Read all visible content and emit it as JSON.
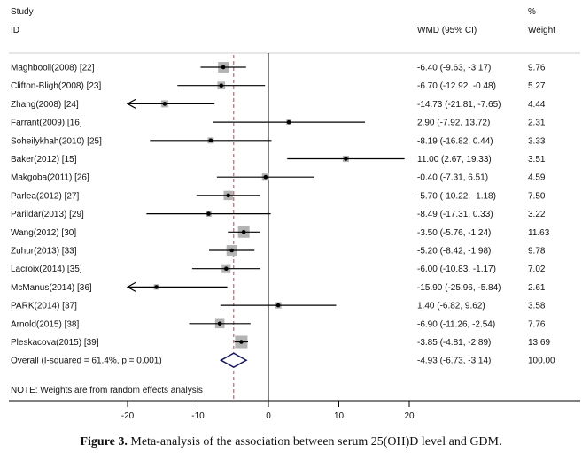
{
  "chart_data": {
    "type": "forest",
    "headers": {
      "study": "Study",
      "id": "ID",
      "effect": "WMD (95% CI)",
      "weight_top": "%",
      "weight": "Weight"
    },
    "xlim": [
      -20,
      20
    ],
    "xticks": [
      -20,
      -10,
      0,
      10,
      20
    ],
    "studies": [
      {
        "label": "Maghbooli(2008) [22]",
        "est": -6.4,
        "lo": -9.63,
        "hi": -3.17,
        "ci_text": "-6.40 (-9.63, -3.17)",
        "weight": "9.76"
      },
      {
        "label": "Clifton-Bligh(2008) [23]",
        "est": -6.7,
        "lo": -12.92,
        "hi": -0.48,
        "ci_text": "-6.70 (-12.92, -0.48)",
        "weight": "5.27"
      },
      {
        "label": "Zhang(2008) [24]",
        "est": -14.73,
        "lo": -21.81,
        "hi": -7.65,
        "ci_text": "-14.73 (-21.81, -7.65)",
        "weight": "4.44"
      },
      {
        "label": "Farrant(2009) [16]",
        "est": 2.9,
        "lo": -7.92,
        "hi": 13.72,
        "ci_text": "2.90 (-7.92, 13.72)",
        "weight": "2.31"
      },
      {
        "label": "Soheilykhah(2010) [25]",
        "est": -8.19,
        "lo": -16.82,
        "hi": 0.44,
        "ci_text": "-8.19 (-16.82, 0.44)",
        "weight": "3.33"
      },
      {
        "label": "Baker(2012) [15]",
        "est": 11.0,
        "lo": 2.67,
        "hi": 19.33,
        "ci_text": "11.00 (2.67, 19.33)",
        "weight": "3.51"
      },
      {
        "label": "Makgoba(2011) [26]",
        "est": -0.4,
        "lo": -7.31,
        "hi": 6.51,
        "ci_text": "-0.40 (-7.31, 6.51)",
        "weight": "4.59"
      },
      {
        "label": "Parlea(2012) [27]",
        "est": -5.7,
        "lo": -10.22,
        "hi": -1.18,
        "ci_text": "-5.70 (-10.22, -1.18)",
        "weight": "7.50"
      },
      {
        "label": "Parildar(2013) [29]",
        "est": -8.49,
        "lo": -17.31,
        "hi": 0.33,
        "ci_text": "-8.49 (-17.31, 0.33)",
        "weight": "3.22"
      },
      {
        "label": "Wang(2012) [30]",
        "est": -3.5,
        "lo": -5.76,
        "hi": -1.24,
        "ci_text": "-3.50 (-5.76, -1.24)",
        "weight": "11.63"
      },
      {
        "label": "Zuhur(2013) [33]",
        "est": -5.2,
        "lo": -8.42,
        "hi": -1.98,
        "ci_text": "-5.20 (-8.42, -1.98)",
        "weight": "9.78"
      },
      {
        "label": "Lacroix(2014) [35]",
        "est": -6.0,
        "lo": -10.83,
        "hi": -1.17,
        "ci_text": "-6.00 (-10.83, -1.17)",
        "weight": "7.02"
      },
      {
        "label": "McManus(2014) [36]",
        "est": -15.9,
        "lo": -25.96,
        "hi": -5.84,
        "ci_text": "-15.90 (-25.96, -5.84)",
        "weight": "2.61"
      },
      {
        "label": "PARK(2014) [37]",
        "est": 1.4,
        "lo": -6.82,
        "hi": 9.62,
        "ci_text": "1.40 (-6.82, 9.62)",
        "weight": "3.58"
      },
      {
        "label": "Arnold(2015) [38]",
        "est": -6.9,
        "lo": -11.26,
        "hi": -2.54,
        "ci_text": "-6.90 (-11.26, -2.54)",
        "weight": "7.76"
      },
      {
        "label": "Pleskacova(2015) [39]",
        "est": -3.85,
        "lo": -4.81,
        "hi": -2.89,
        "ci_text": "-3.85 (-4.81, -2.89)",
        "weight": "13.69"
      }
    ],
    "overall": {
      "label": "Overall  (I-squared = 61.4%, p = 0.001)",
      "est": -4.93,
      "lo": -6.73,
      "hi": -3.14,
      "ci_text": "-4.93 (-6.73, -3.14)",
      "weight": "100.00"
    },
    "note": "NOTE: Weights are from random effects analysis",
    "colors": {
      "square": "#b3b3b3",
      "diamond": "#1a1a5e",
      "dashed": "#a05050",
      "line": "#000000"
    }
  },
  "caption": {
    "label": "Figure 3.",
    "text": " Meta-analysis of the association between serum 25(OH)D level and GDM."
  }
}
